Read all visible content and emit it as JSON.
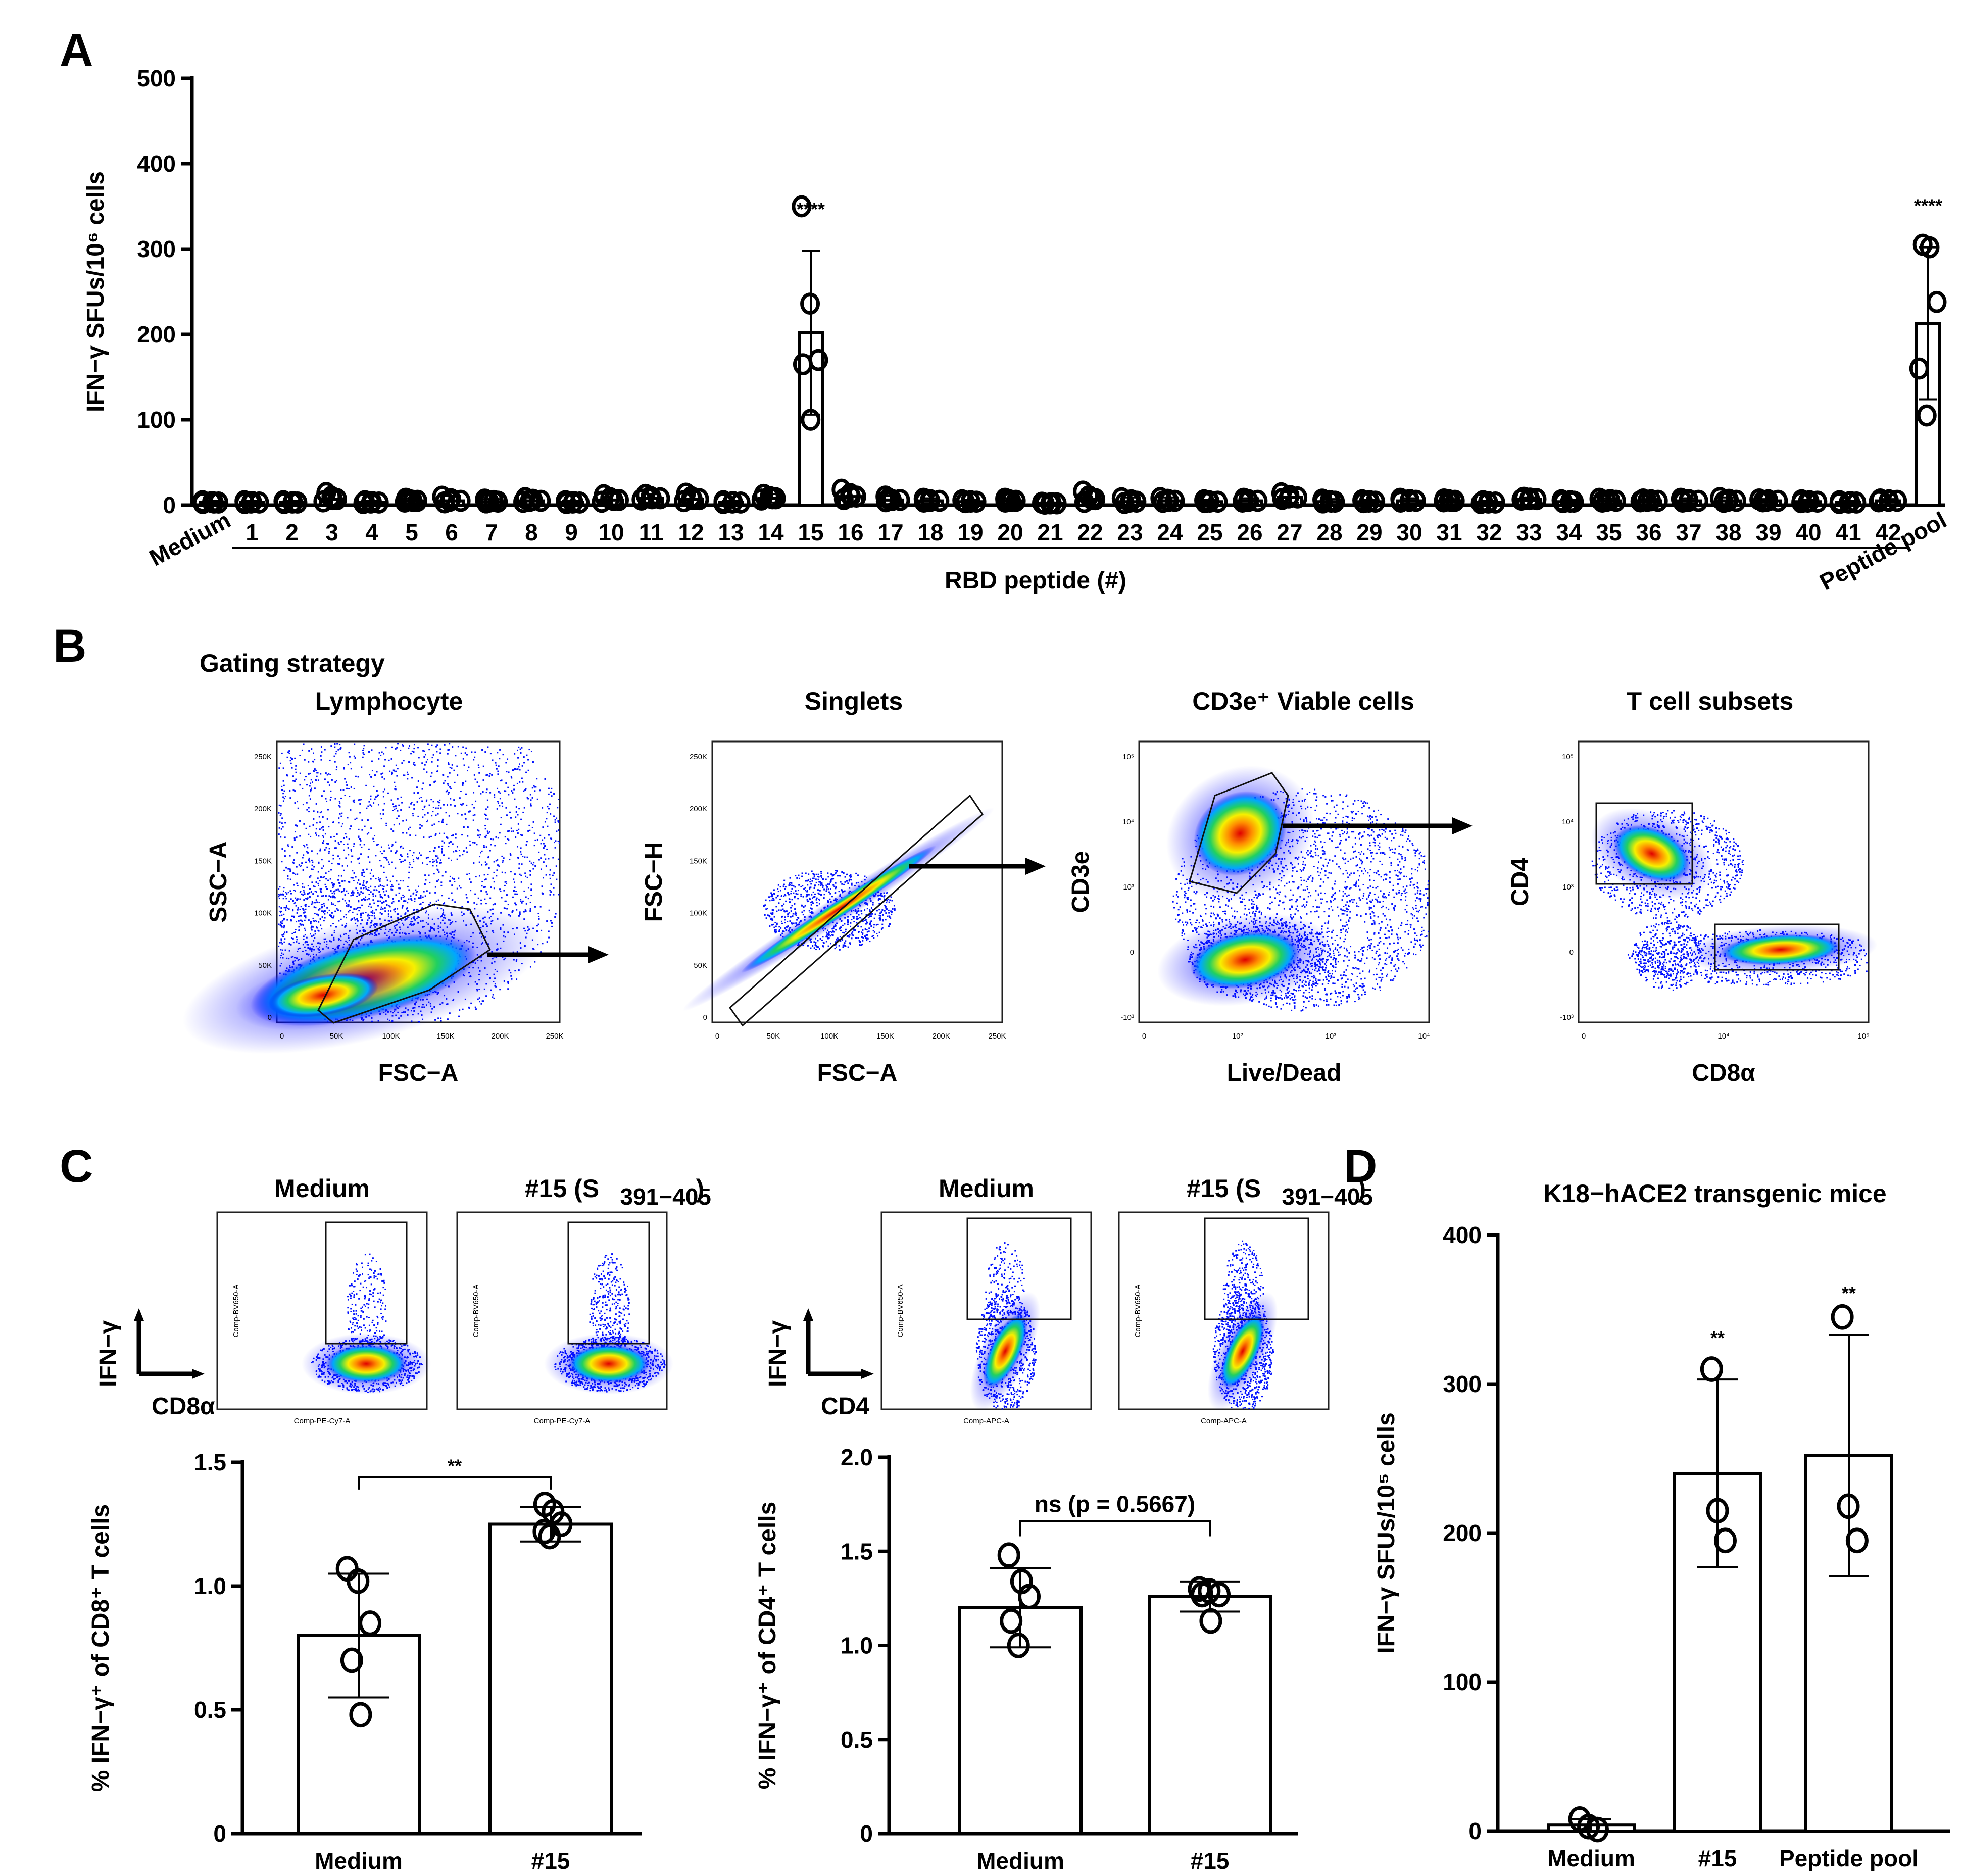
{
  "panels": {
    "a": "A",
    "b": "B",
    "c": "C",
    "d": "D"
  },
  "panelB": {
    "heading": "Gating strategy",
    "plots": [
      {
        "title": "Lymphocyte",
        "x_axis": "FSC−A",
        "y_axis": "SSC−A",
        "x_ticks": [
          "0",
          "50K",
          "100K",
          "150K",
          "200K",
          "250K"
        ],
        "y_ticks": [
          "0",
          "50K",
          "100K",
          "150K",
          "200K",
          "250K"
        ]
      },
      {
        "title": "Singlets",
        "x_axis": "FSC−A",
        "y_axis": "FSC−H",
        "x_ticks": [
          "0",
          "50K",
          "100K",
          "150K",
          "200K",
          "250K"
        ],
        "y_ticks": [
          "0",
          "50K",
          "100K",
          "150K",
          "200K",
          "250K"
        ]
      },
      {
        "title": "CD3e⁺ Viable cells",
        "x_axis": "Live/Dead",
        "y_axis": "CD3e",
        "x_ticks": [
          "0",
          "10²",
          "10³",
          "10⁴"
        ],
        "y_ticks": [
          "-10³",
          "0",
          "10³",
          "10⁴",
          "10⁵"
        ]
      },
      {
        "title": "T cell subsets",
        "x_axis": "CD8α",
        "y_axis": "CD4",
        "x_ticks": [
          "0",
          "10⁴",
          "10⁵"
        ],
        "y_ticks": [
          "-10³",
          "0",
          "10³",
          "10⁴",
          "10⁵"
        ]
      }
    ]
  },
  "panelC": {
    "cd8": {
      "plot_titles": [
        "Medium",
        "#15 (S"
      ],
      "subscript": "391−405",
      "close_paren": ")",
      "y_marker": "IFN−γ",
      "x_marker": "CD8α",
      "tiny_y": "Comp-BV650-A",
      "tiny_x": "Comp-PE-Cy7-A"
    },
    "cd4": {
      "plot_titles": [
        "Medium",
        "#15 (S"
      ],
      "subscript": "391−405",
      "close_paren": ")",
      "y_marker": "IFN−γ",
      "x_marker": "CD4",
      "tiny_y": "Comp-BV650-A",
      "tiny_x": "Comp-APC-A"
    }
  },
  "chart_data": [
    {
      "id": "A",
      "type": "bar",
      "categories": [
        "Medium",
        "1",
        "2",
        "3",
        "4",
        "5",
        "6",
        "7",
        "8",
        "9",
        "10",
        "11",
        "12",
        "13",
        "14",
        "15",
        "16",
        "17",
        "18",
        "19",
        "20",
        "21",
        "22",
        "23",
        "24",
        "25",
        "26",
        "27",
        "28",
        "29",
        "30",
        "31",
        "32",
        "33",
        "34",
        "35",
        "36",
        "37",
        "38",
        "39",
        "40",
        "41",
        "42",
        "Peptide pool"
      ],
      "values": [
        3,
        3,
        3,
        7,
        3,
        5,
        5,
        4,
        5,
        3,
        6,
        8,
        7,
        3,
        8,
        202,
        10,
        6,
        5,
        4,
        5,
        2,
        7,
        4,
        5,
        4,
        5,
        9,
        4,
        4,
        5,
        5,
        3,
        7,
        4,
        5,
        5,
        5,
        5,
        5,
        4,
        3,
        5,
        213
      ],
      "error": [
        2,
        2,
        2,
        9,
        2,
        3,
        6,
        3,
        4,
        2,
        7,
        5,
        8,
        2,
        5,
        96,
        10,
        5,
        3,
        2,
        3,
        1,
        11,
        5,
        4,
        2,
        3,
        6,
        3,
        2,
        3,
        2,
        2,
        2,
        2,
        3,
        2,
        3,
        4,
        2,
        2,
        2,
        2,
        89
      ],
      "points": {
        "15": [
          350,
          236,
          170,
          165,
          100
        ],
        "Peptide pool": [
          305,
          302,
          238,
          160,
          105
        ]
      },
      "significance": {
        "15": "****",
        "Peptide pool": "****"
      },
      "title": "",
      "xlabel": "RBD peptide (#)",
      "ylabel": "IFN−γ SFUs/10⁶ cells",
      "ylim": [
        0,
        500
      ],
      "yticks": [
        "0",
        "100",
        "200",
        "300",
        "400",
        "500"
      ]
    },
    {
      "id": "C-left",
      "type": "bar",
      "categories": [
        "Medium",
        "#15"
      ],
      "values": [
        0.8,
        1.25
      ],
      "error": [
        0.25,
        0.07
      ],
      "points": {
        "Medium": [
          1.07,
          1.02,
          0.85,
          0.7,
          0.48
        ],
        "#15": [
          1.33,
          1.3,
          1.25,
          1.22,
          1.2
        ]
      },
      "significance_label": "**",
      "ylabel": "% IFN−γ⁺ of CD8⁺ T cells",
      "ylim": [
        0,
        1.5
      ],
      "yticks": [
        "0",
        "0.5",
        "1.0",
        "1.5"
      ]
    },
    {
      "id": "C-right",
      "type": "bar",
      "categories": [
        "Medium",
        "#15"
      ],
      "values": [
        1.2,
        1.26
      ],
      "error": [
        0.21,
        0.08
      ],
      "points": {
        "Medium": [
          1.48,
          1.34,
          1.26,
          1.13,
          1.0
        ],
        "#15": [
          1.3,
          1.29,
          1.27,
          1.27,
          1.13
        ]
      },
      "significance_label": "ns (p = 0.5667)",
      "ylabel": "% IFN−γ⁺ of CD4⁺ T cells",
      "ylim": [
        0,
        2.0
      ],
      "yticks": [
        "0",
        "0.5",
        "1.0",
        "1.5",
        "2.0"
      ]
    },
    {
      "id": "D",
      "type": "bar",
      "title": "K18−hACE2 transgenic mice",
      "categories": [
        "Medium",
        "#15",
        "Peptide pool"
      ],
      "values": [
        4,
        240,
        252
      ],
      "error": [
        4,
        63,
        81
      ],
      "points": {
        "Medium": [
          8,
          3,
          1
        ],
        "#15": [
          310,
          215,
          195
        ],
        "Peptide pool": [
          345,
          218,
          195
        ]
      },
      "significance": {
        "#15": "**",
        "Peptide pool": "**"
      },
      "ylabel": "IFN−γ SFUs/10⁵ cells",
      "ylim": [
        0,
        400
      ],
      "yticks": [
        "0",
        "100",
        "200",
        "300",
        "400"
      ]
    }
  ]
}
